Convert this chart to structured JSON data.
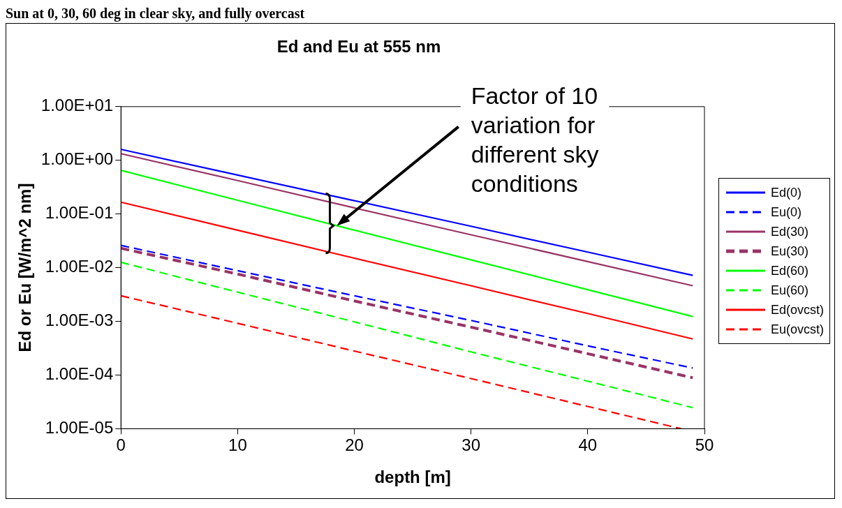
{
  "chart_data": {
    "type": "line",
    "subtitle": "Sun at 0, 30, 60 deg in clear sky, and fully overcast",
    "title": "Ed and Eu at 555 nm",
    "xlabel": "depth [m]",
    "ylabel": "Ed or Eu [W/m^2 nm]",
    "log": "y",
    "grid": false,
    "legend": "right",
    "marker": "none",
    "xlim": [
      0,
      50
    ],
    "xticks": [
      0,
      10,
      20,
      30,
      40,
      50
    ],
    "ylim": [
      1e-05,
      10
    ],
    "yticks": [
      {
        "value": 10,
        "label": "1.00E+01"
      },
      {
        "value": 1,
        "label": "1.00E+00"
      },
      {
        "value": 0.1,
        "label": "1.00E-01"
      },
      {
        "value": 0.01,
        "label": "1.00E-02"
      },
      {
        "value": 0.001,
        "label": "1.00E-03"
      },
      {
        "value": 0.0001,
        "label": "1.00E-04"
      },
      {
        "value": 1e-05,
        "label": "1.00E-05"
      }
    ],
    "annotations": [
      "Factor of 10 variation for different sky conditions"
    ],
    "series": [
      {
        "name": "Ed(0)",
        "color": "#0000ff",
        "line_style": "solid",
        "x": [
          0,
          10,
          20,
          30,
          40,
          49
        ],
        "values": [
          1.6,
          0.53,
          0.177,
          0.059,
          0.0195,
          0.0072
        ]
      },
      {
        "name": "Eu(0)",
        "color": "#0000ff",
        "line_style": "dashed",
        "x": [
          0,
          10,
          20,
          30,
          40,
          49
        ],
        "values": [
          0.026,
          0.0088,
          0.003,
          0.00104,
          0.00035,
          0.000135
        ]
      },
      {
        "name": "Ed(30)",
        "color": "#993366",
        "line_style": "solid",
        "x": [
          0,
          10,
          20,
          30,
          40,
          49
        ],
        "values": [
          1.33,
          0.42,
          0.13,
          0.041,
          0.013,
          0.0046
        ]
      },
      {
        "name": "Eu(30)",
        "color": "#993366",
        "line_style": "dashed",
        "x": [
          0,
          10,
          20,
          30,
          40,
          49
        ],
        "values": [
          0.023,
          0.0076,
          0.0024,
          0.00078,
          0.00025,
          8.9e-05
        ]
      },
      {
        "name": "Ed(60)",
        "color": "#00ff00",
        "line_style": "solid",
        "x": [
          0,
          10,
          20,
          30,
          40,
          49
        ],
        "values": [
          0.65,
          0.18,
          0.05,
          0.014,
          0.0039,
          0.00123
        ]
      },
      {
        "name": "Eu(60)",
        "color": "#00ff00",
        "line_style": "dashed",
        "x": [
          0,
          10,
          20,
          30,
          40,
          49
        ],
        "values": [
          0.0126,
          0.0035,
          0.00098,
          0.00027,
          7.7e-05,
          2.47e-05
        ]
      },
      {
        "name": "Ed(ovcst)",
        "color": "#ff0000",
        "line_style": "solid",
        "x": [
          0,
          10,
          20,
          30,
          40,
          49
        ],
        "values": [
          0.166,
          0.05,
          0.015,
          0.0046,
          0.0014,
          0.00047
        ]
      },
      {
        "name": "Eu(ovcst)",
        "color": "#ff0000",
        "line_style": "dashed",
        "x": [
          0,
          10,
          20,
          30,
          40,
          48
        ],
        "values": [
          0.003,
          0.00092,
          0.00028,
          8.6e-05,
          2.6e-05,
          1e-05
        ]
      }
    ]
  }
}
